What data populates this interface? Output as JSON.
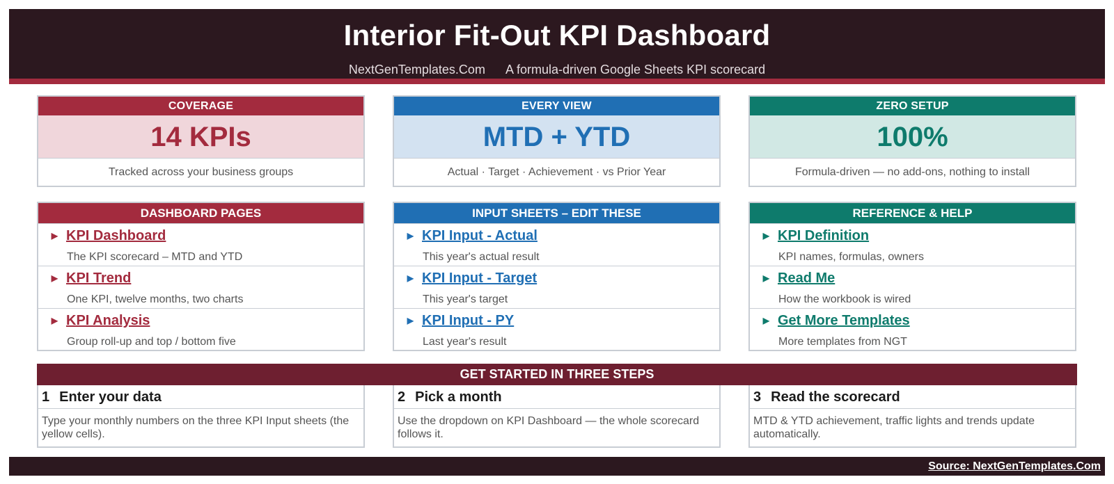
{
  "header": {
    "title": "Interior Fit-Out KPI Dashboard",
    "site": "NextGenTemplates.Com",
    "tagline": "A formula-driven Google Sheets KPI scorecard"
  },
  "kpi_cards": [
    {
      "label": "COVERAGE",
      "value": "14 KPIs",
      "desc": "Tracked across your business groups"
    },
    {
      "label": "EVERY VIEW",
      "value": "MTD + YTD",
      "desc": "Actual · Target · Achievement · vs Prior Year"
    },
    {
      "label": "ZERO SETUP",
      "value": "100%",
      "desc": "Formula-driven — no add-ons, nothing to install"
    }
  ],
  "panels": [
    {
      "title": "DASHBOARD PAGES",
      "items": [
        {
          "label": "KPI Dashboard",
          "desc": "The KPI scorecard – MTD and YTD"
        },
        {
          "label": "KPI Trend",
          "desc": "One KPI, twelve months, two charts"
        },
        {
          "label": "KPI Analysis",
          "desc": "Group roll-up and top / bottom five"
        }
      ]
    },
    {
      "title": "INPUT SHEETS – EDIT THESE",
      "items": [
        {
          "label": "KPI Input - Actual",
          "desc": "This year's actual result"
        },
        {
          "label": "KPI Input - Target",
          "desc": "This year's target"
        },
        {
          "label": "KPI Input - PY",
          "desc": "Last year's result"
        }
      ]
    },
    {
      "title": "REFERENCE & HELP",
      "items": [
        {
          "label": "KPI Definition",
          "desc": "KPI names, formulas, owners"
        },
        {
          "label": "Read Me",
          "desc": "How the workbook is wired"
        },
        {
          "label": "Get More Templates",
          "desc": "More templates from NGT"
        }
      ]
    }
  ],
  "steps": {
    "title": "GET STARTED IN THREE STEPS",
    "items": [
      {
        "num": "1",
        "title": "Enter your data",
        "text": "Type your monthly numbers on the three KPI Input sheets (the yellow cells)."
      },
      {
        "num": "2",
        "title": "Pick a month",
        "text": "Use the dropdown on KPI Dashboard — the whole scorecard follows it."
      },
      {
        "num": "3",
        "title": "Read the scorecard",
        "text": "MTD & YTD achievement, traffic lights and trends update automatically."
      }
    ]
  },
  "footer": {
    "source": "Source: NextGenTemplates.Com"
  },
  "colors": {
    "header_bg": "#2c181f",
    "red": "#a32b3e",
    "red_tint": "#f0d6db",
    "blue": "#206fb4",
    "blue_tint": "#d3e2f1",
    "teal": "#0e7b6c",
    "teal_tint": "#d1e8e4",
    "steps_banner": "#6e1f30"
  }
}
